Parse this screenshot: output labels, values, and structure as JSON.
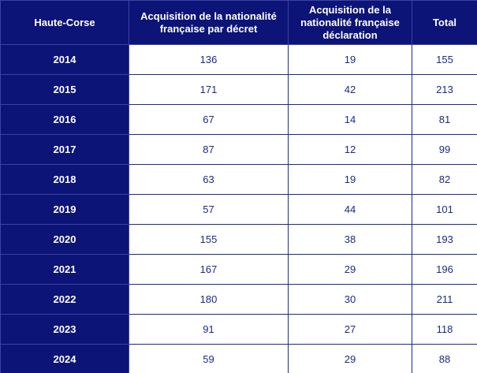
{
  "table": {
    "header": [
      "Haute-Corse",
      "Acquisition de la nationalité française par décret",
      "Acquisition de la nationalité française déclaration",
      "Total"
    ],
    "rows": [
      [
        "2014",
        136,
        19,
        155
      ],
      [
        "2015",
        171,
        42,
        213
      ],
      [
        "2016",
        67,
        14,
        81
      ],
      [
        "2017",
        87,
        12,
        99
      ],
      [
        "2018",
        63,
        19,
        82
      ],
      [
        "2019",
        57,
        44,
        101
      ],
      [
        "2020",
        155,
        38,
        193
      ],
      [
        "2021",
        167,
        29,
        196
      ],
      [
        "2022",
        180,
        30,
        211
      ],
      [
        "2023",
        91,
        27,
        118
      ],
      [
        "2024",
        59,
        29,
        88
      ]
    ]
  }
}
